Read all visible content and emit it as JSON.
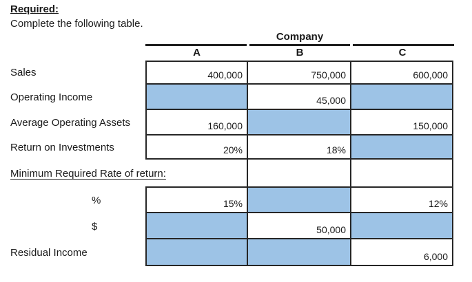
{
  "title": "Required:",
  "instruction": "Complete the following table.",
  "table": {
    "group_header": "Company",
    "column_headers": {
      "a": "A",
      "b": "B",
      "c": "C"
    },
    "rows": [
      {
        "label": "Sales",
        "cells": [
          {
            "value": "400,000",
            "state": "given"
          },
          {
            "value": "750,000",
            "state": "given"
          },
          {
            "value": "600,000",
            "state": "given"
          }
        ]
      },
      {
        "label": "Operating Income",
        "cells": [
          {
            "value": "",
            "state": "blank"
          },
          {
            "value": "45,000",
            "state": "given"
          },
          {
            "value": "",
            "state": "blank"
          }
        ]
      },
      {
        "label": "Average Operating Assets",
        "cells": [
          {
            "value": "160,000",
            "state": "given"
          },
          {
            "value": "",
            "state": "blank"
          },
          {
            "value": "150,000",
            "state": "given"
          }
        ]
      },
      {
        "label": "Return on Investments",
        "cells": [
          {
            "value": "20%",
            "state": "given"
          },
          {
            "value": "18%",
            "state": "given"
          },
          {
            "value": "",
            "state": "blank"
          }
        ]
      },
      {
        "label": "Minimum Required Rate of return:",
        "cells": [
          {
            "value": "",
            "state": "open"
          },
          {
            "value": "",
            "state": "empty"
          },
          {
            "value": "",
            "state": "empty"
          }
        ]
      },
      {
        "label": "%",
        "cells": [
          {
            "value": "15%",
            "state": "given"
          },
          {
            "value": "",
            "state": "blank"
          },
          {
            "value": "12%",
            "state": "given"
          }
        ]
      },
      {
        "label": "$",
        "cells": [
          {
            "value": "",
            "state": "blank"
          },
          {
            "value": "50,000",
            "state": "given"
          },
          {
            "value": "",
            "state": "blank"
          }
        ]
      },
      {
        "label": "Residual Income",
        "cells": [
          {
            "value": "",
            "state": "blank"
          },
          {
            "value": "",
            "state": "blank"
          },
          {
            "value": "6,000",
            "state": "given"
          }
        ]
      }
    ]
  },
  "colors": {
    "blank_cell_fill": "#9dc3e6",
    "table_border": "#262626",
    "header_rule": "#1f1f1f",
    "text": "#1a1a1a",
    "background": "#ffffff"
  }
}
